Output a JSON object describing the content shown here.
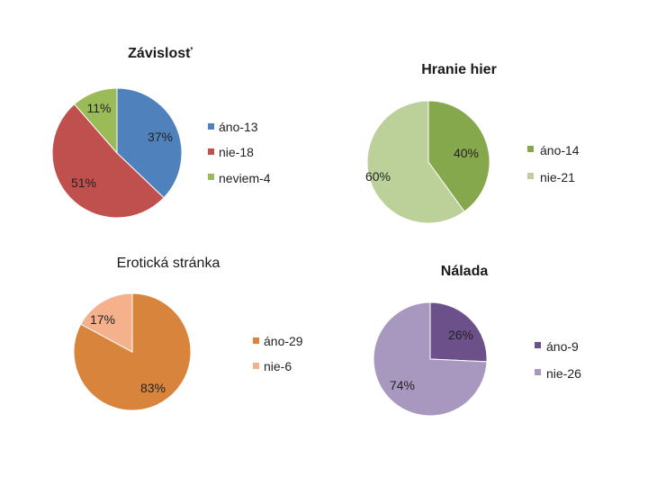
{
  "chart_data": [
    {
      "type": "pie",
      "title": "Závislosť",
      "categories": [
        "áno-13",
        "nie-18",
        "neviem-4"
      ],
      "values": [
        13,
        18,
        4
      ],
      "labels": [
        "37%",
        "51%",
        "11%"
      ],
      "colors": [
        "#4f81bd",
        "#c0504d",
        "#9bbb59"
      ],
      "legend_position": "right"
    },
    {
      "type": "pie",
      "title": "Hranie hier",
      "categories": [
        "áno-14",
        "nie-21"
      ],
      "values": [
        14,
        21
      ],
      "labels": [
        "40%",
        "60%"
      ],
      "colors": [
        "#86a84c",
        "#bcd19a"
      ],
      "legend_position": "right"
    },
    {
      "type": "pie",
      "title": "Erotická stránka",
      "categories": [
        "áno-29",
        "nie-6"
      ],
      "values": [
        29,
        6
      ],
      "labels": [
        "83%",
        "17%"
      ],
      "colors": [
        "#d9843c",
        "#f5b08c"
      ],
      "legend_position": "right"
    },
    {
      "type": "pie",
      "title": "Nálada",
      "categories": [
        "áno-9",
        "nie-26"
      ],
      "values": [
        9,
        26
      ],
      "labels": [
        "26%",
        "74%"
      ],
      "colors": [
        "#6b5089",
        "#a898bf"
      ],
      "legend_position": "right"
    }
  ]
}
